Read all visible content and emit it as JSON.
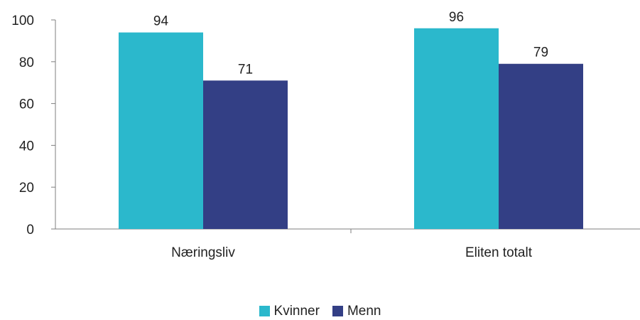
{
  "chart_data": {
    "type": "bar",
    "categories": [
      "Næringsliv",
      "Eliten totalt"
    ],
    "series": [
      {
        "name": "Kvinner",
        "values": [
          94,
          96
        ],
        "color": "#2bb8cc"
      },
      {
        "name": "Menn",
        "values": [
          71,
          79
        ],
        "color": "#333f85"
      }
    ],
    "ylim": [
      0,
      100
    ],
    "yticks": [
      0,
      20,
      40,
      60,
      80,
      100
    ],
    "title": "",
    "xlabel": "",
    "ylabel": "",
    "grid": false,
    "legend_position": "bottom",
    "data_labels": true
  }
}
